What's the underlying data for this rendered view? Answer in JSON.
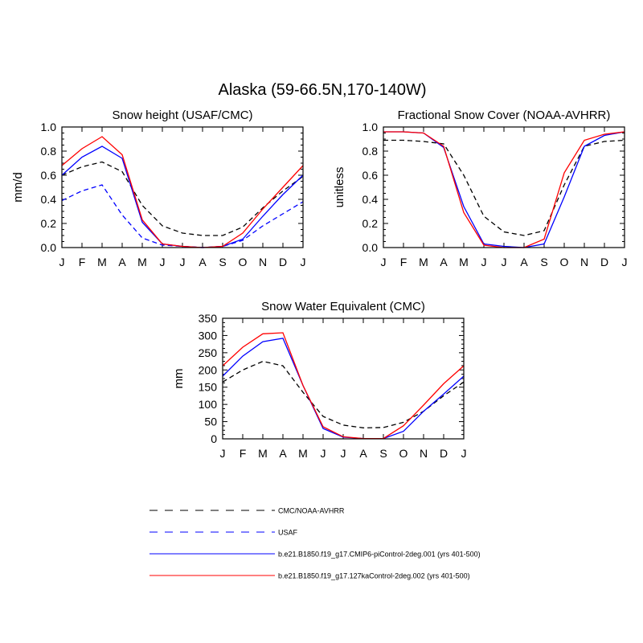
{
  "figure": {
    "title": "Alaska (59-66.5N,170-140W)"
  },
  "colors": {
    "obs": "#000000",
    "usaf": "#0000ff",
    "model_a": "#0000ff",
    "model_b": "#ff0000"
  },
  "legend": [
    {
      "label": "CMC/NOAA-AVHRR",
      "color": "#000000",
      "dash": true
    },
    {
      "label": "USAF",
      "color": "#0000ff",
      "dash": true
    },
    {
      "label": "b.e21.B1850.f19_g17.CMIP6-piControl-2deg.001 (yrs 401-500)",
      "color": "#0000ff",
      "dash": false
    },
    {
      "label": "b.e21.B1850.f19_g17.127kaControl-2deg.002 (yrs 401-500)",
      "color": "#ff0000",
      "dash": false
    }
  ],
  "chart_data": [
    {
      "type": "line",
      "title": "Snow height (USAF/CMC)",
      "ylabel": "mm/d",
      "xlabel": "",
      "categories": [
        "J",
        "F",
        "M",
        "A",
        "M",
        "J",
        "J",
        "A",
        "S",
        "O",
        "N",
        "D",
        "J"
      ],
      "ylim": [
        0,
        1.0
      ],
      "yticks": [
        0.0,
        0.2,
        0.4,
        0.6,
        0.8,
        1.0
      ],
      "ytick_labels": [
        "0.0",
        "0.2",
        "0.4",
        "0.6",
        "0.8",
        "1.0"
      ],
      "series": [
        {
          "name": "CMC/NOAA-AVHRR",
          "color": "#000000",
          "dash": true,
          "values": [
            0.6,
            0.67,
            0.71,
            0.63,
            0.35,
            0.18,
            0.12,
            0.1,
            0.1,
            0.17,
            0.33,
            0.47,
            0.59
          ]
        },
        {
          "name": "USAF",
          "color": "#0000ff",
          "dash": true,
          "values": [
            0.39,
            0.47,
            0.52,
            0.27,
            0.08,
            0.02,
            0.01,
            0.0,
            0.01,
            0.06,
            0.18,
            0.28,
            0.38
          ]
        },
        {
          "name": "b.e21.B1850.f19_g17.CMIP6-piControl-2deg.001 (yrs 401-500)",
          "color": "#0000ff",
          "dash": false,
          "values": [
            0.6,
            0.75,
            0.84,
            0.74,
            0.21,
            0.03,
            0.01,
            0.0,
            0.01,
            0.07,
            0.26,
            0.44,
            0.6
          ]
        },
        {
          "name": "b.e21.B1850.f19_g17.127kaControl-2deg.002 (yrs 401-500)",
          "color": "#ff0000",
          "dash": false,
          "values": [
            0.68,
            0.82,
            0.92,
            0.77,
            0.23,
            0.03,
            0.01,
            0.0,
            0.01,
            0.12,
            0.32,
            0.5,
            0.68
          ]
        }
      ]
    },
    {
      "type": "line",
      "title": "Fractional Snow Cover (NOAA-AVHRR)",
      "ylabel": "unitless",
      "xlabel": "",
      "categories": [
        "J",
        "F",
        "M",
        "A",
        "M",
        "J",
        "J",
        "A",
        "S",
        "O",
        "N",
        "D",
        "J"
      ],
      "ylim": [
        0,
        1.0
      ],
      "yticks": [
        0.0,
        0.2,
        0.4,
        0.6,
        0.8,
        1.0
      ],
      "ytick_labels": [
        "0.0",
        "0.2",
        "0.4",
        "0.6",
        "0.8",
        "1.0"
      ],
      "series": [
        {
          "name": "CMC/NOAA-AVHRR",
          "color": "#000000",
          "dash": true,
          "values": [
            0.89,
            0.89,
            0.88,
            0.86,
            0.6,
            0.26,
            0.13,
            0.1,
            0.14,
            0.52,
            0.84,
            0.88,
            0.89
          ]
        },
        {
          "name": "b.e21.B1850.f19_g17.CMIP6-piControl-2deg.001 (yrs 401-500)",
          "color": "#0000ff",
          "dash": false,
          "values": [
            0.96,
            0.96,
            0.95,
            0.83,
            0.34,
            0.03,
            0.01,
            0.0,
            0.03,
            0.42,
            0.84,
            0.93,
            0.96
          ]
        },
        {
          "name": "b.e21.B1850.f19_g17.127kaControl-2deg.002 (yrs 401-500)",
          "color": "#ff0000",
          "dash": false,
          "values": [
            0.96,
            0.96,
            0.95,
            0.84,
            0.29,
            0.02,
            0.0,
            0.0,
            0.07,
            0.62,
            0.89,
            0.94,
            0.96
          ]
        }
      ]
    },
    {
      "type": "line",
      "title": "Snow Water Equivalent (CMC)",
      "ylabel": "mm",
      "xlabel": "",
      "categories": [
        "J",
        "F",
        "M",
        "A",
        "M",
        "J",
        "J",
        "A",
        "S",
        "O",
        "N",
        "D",
        "J"
      ],
      "ylim": [
        0,
        350
      ],
      "yticks": [
        0,
        50,
        100,
        150,
        200,
        250,
        300,
        350
      ],
      "ytick_labels": [
        "0",
        "50",
        "100",
        "150",
        "200",
        "250",
        "300",
        "350"
      ],
      "series": [
        {
          "name": "CMC/NOAA-AVHRR",
          "color": "#000000",
          "dash": true,
          "values": [
            165,
            200,
            225,
            212,
            135,
            65,
            40,
            32,
            33,
            48,
            80,
            125,
            165
          ]
        },
        {
          "name": "b.e21.B1850.f19_g17.CMIP6-piControl-2deg.001 (yrs 401-500)",
          "color": "#0000ff",
          "dash": false,
          "values": [
            182,
            240,
            282,
            292,
            155,
            30,
            5,
            1,
            1,
            22,
            80,
            130,
            182
          ]
        },
        {
          "name": "b.e21.B1850.f19_g17.127kaControl-2deg.002 (yrs 401-500)",
          "color": "#ff0000",
          "dash": false,
          "values": [
            212,
            266,
            305,
            308,
            155,
            35,
            6,
            1,
            1,
            38,
            98,
            160,
            212
          ]
        }
      ]
    }
  ]
}
